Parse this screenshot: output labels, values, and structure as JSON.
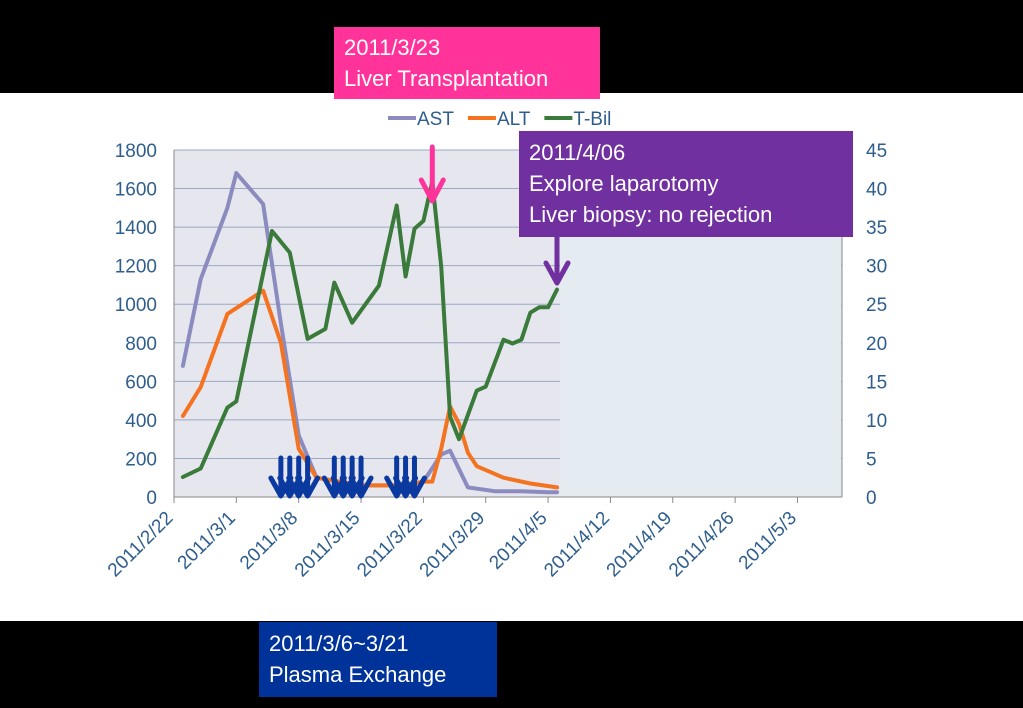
{
  "chart_data": {
    "type": "line",
    "legend": {
      "position": "top",
      "items": [
        {
          "name": "AST",
          "color": "#8b8bbf"
        },
        {
          "name": "ALT",
          "color": "#f47320"
        },
        {
          "name": "T-Bil",
          "color": "#3a7a3a"
        }
      ]
    },
    "x_axis": {
      "type": "date",
      "range": [
        "2011/2/22",
        "2011/5/8"
      ],
      "tick_labels": [
        "2011/2/22",
        "2011/3/1",
        "2011/3/8",
        "2011/3/15",
        "2011/3/22",
        "2011/3/29",
        "2011/4/5",
        "2011/4/12",
        "2011/4/19",
        "2011/4/26",
        "2011/5/3"
      ]
    },
    "y_left": {
      "range": [
        0,
        1800
      ],
      "ticks": [
        "0",
        "200",
        "400",
        "600",
        "800",
        "1000",
        "1200",
        "1400",
        "1600",
        "1800"
      ]
    },
    "y_right": {
      "range": [
        0,
        45
      ],
      "ticks": [
        "0",
        "5",
        "10",
        "15",
        "20",
        "25",
        "30",
        "35",
        "40",
        "45"
      ]
    },
    "grid": true,
    "series": [
      {
        "name": "AST",
        "axis": "left",
        "color": "#8b8bbf",
        "points": [
          [
            "2011/2/23",
            680
          ],
          [
            "2011/2/25",
            1130
          ],
          [
            "2011/2/28",
            1500
          ],
          [
            "2011/3/1",
            1680
          ],
          [
            "2011/3/4",
            1520
          ],
          [
            "2011/3/6",
            900
          ],
          [
            "2011/3/8",
            320
          ],
          [
            "2011/3/10",
            100
          ],
          [
            "2011/3/15",
            60
          ],
          [
            "2011/3/20",
            60
          ],
          [
            "2011/3/22",
            80
          ],
          [
            "2011/3/24",
            220
          ],
          [
            "2011/3/25",
            240
          ],
          [
            "2011/3/27",
            50
          ],
          [
            "2011/3/30",
            30
          ],
          [
            "2011/4/2",
            30
          ],
          [
            "2011/4/5",
            25
          ],
          [
            "2011/4/6",
            25
          ]
        ]
      },
      {
        "name": "ALT",
        "axis": "left",
        "color": "#f47320",
        "points": [
          [
            "2011/2/23",
            420
          ],
          [
            "2011/2/25",
            570
          ],
          [
            "2011/2/28",
            950
          ],
          [
            "2011/3/4",
            1070
          ],
          [
            "2011/3/6",
            800
          ],
          [
            "2011/3/8",
            250
          ],
          [
            "2011/3/10",
            100
          ],
          [
            "2011/3/15",
            60
          ],
          [
            "2011/3/20",
            60
          ],
          [
            "2011/3/22",
            80
          ],
          [
            "2011/3/23",
            80
          ],
          [
            "2011/3/24",
            250
          ],
          [
            "2011/3/25",
            470
          ],
          [
            "2011/3/26",
            380
          ],
          [
            "2011/3/27",
            230
          ],
          [
            "2011/3/28",
            160
          ],
          [
            "2011/3/31",
            100
          ],
          [
            "2011/4/3",
            70
          ],
          [
            "2011/4/6",
            50
          ]
        ]
      },
      {
        "name": "T-Bil",
        "axis": "right",
        "color": "#3a7a3a",
        "points": [
          [
            "2011/2/23",
            2.6
          ],
          [
            "2011/2/25",
            3.7
          ],
          [
            "2011/2/28",
            11.6
          ],
          [
            "2011/3/1",
            12.4
          ],
          [
            "2011/3/5",
            34.5
          ],
          [
            "2011/3/7",
            31.7
          ],
          [
            "2011/3/9",
            20.5
          ],
          [
            "2011/3/11",
            21.8
          ],
          [
            "2011/3/12",
            27.8
          ],
          [
            "2011/3/14",
            22.6
          ],
          [
            "2011/3/17",
            27.4
          ],
          [
            "2011/3/19",
            37.8
          ],
          [
            "2011/3/20",
            28.6
          ],
          [
            "2011/3/21",
            34.8
          ],
          [
            "2011/3/22",
            35.8
          ],
          [
            "2011/3/23",
            40.9
          ],
          [
            "2011/3/24",
            29.9
          ],
          [
            "2011/3/25",
            10.4
          ],
          [
            "2011/3/26",
            7.5
          ],
          [
            "2011/3/28",
            13.8
          ],
          [
            "2011/3/29",
            14.3
          ],
          [
            "2011/3/31",
            20.4
          ],
          [
            "2011/4/1",
            19.9
          ],
          [
            "2011/4/2",
            20.4
          ],
          [
            "2011/4/3",
            23.9
          ],
          [
            "2011/4/4",
            24.6
          ],
          [
            "2011/4/5",
            24.6
          ],
          [
            "2011/4/6",
            26.9
          ]
        ]
      }
    ],
    "plasma_exchange_dates": [
      "2011/3/6",
      "2011/3/7",
      "2011/3/8",
      "2011/3/9",
      "2011/3/12",
      "2011/3/13",
      "2011/3/14",
      "2011/3/15",
      "2011/3/19",
      "2011/3/20",
      "2011/3/21"
    ],
    "annotations": [
      {
        "id": "transplant",
        "lines": [
          "2011/3/23",
          "Liver Transplantation"
        ],
        "date": "2011/3/23",
        "color": "#ff3399"
      },
      {
        "id": "biopsy",
        "lines": [
          "2011/4/06",
          "Explore laparotomy",
          "Liver biopsy: no rejection"
        ],
        "date": "2011/4/6",
        "color": "#7030a0"
      },
      {
        "id": "plasma",
        "lines": [
          "2011/3/6~3/21",
          "Plasma Exchange"
        ],
        "date_range": [
          "2011/3/6",
          "2011/3/21"
        ],
        "color": "#003399"
      }
    ],
    "plot_background": "#e6e6ee",
    "covered_region_color": "#e4ebf1",
    "axis_label_color": "#2f5e8e",
    "arrow_color": "#0a3aa0"
  }
}
